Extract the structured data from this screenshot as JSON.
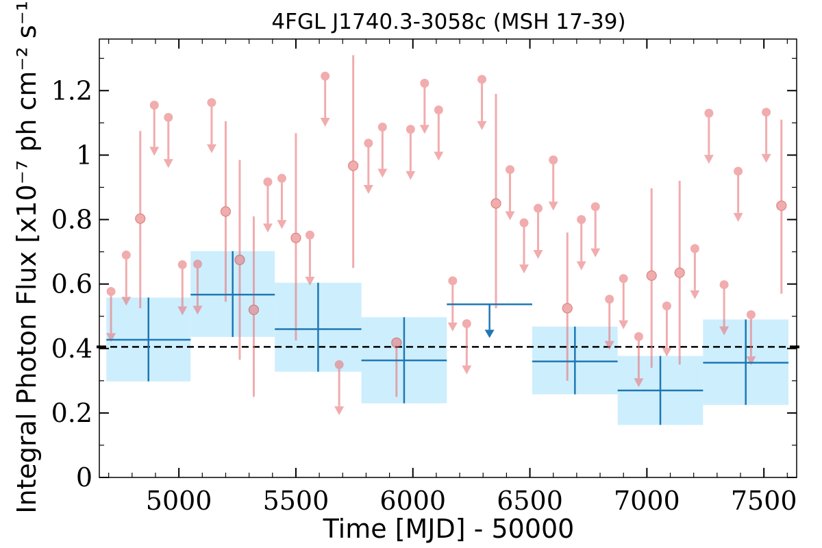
{
  "chart_data": {
    "type": "scatter",
    "title": "4FGL J1740.3-3058c (MSH 17-39)",
    "xlabel": "Time [MJD] - 50000",
    "ylabel": "Integral Photon Flux [x10⁻⁷ ph cm⁻² s⁻¹]",
    "xlim": [
      4660,
      7640
    ],
    "ylim": [
      0,
      1.36
    ],
    "xticks": [
      5000,
      5500,
      6000,
      6500,
      7000,
      7500
    ],
    "yticks": [
      0,
      0.2,
      0.4,
      0.6,
      0.8,
      1,
      1.2
    ],
    "ytick_labels": [
      "0",
      "0.2",
      "0.4",
      "0.6",
      "0.8",
      "1",
      "1.2"
    ],
    "reference_line": {
      "y": 0.405,
      "style": "dashed",
      "color": "#000000"
    },
    "colors": {
      "short_bins": "#e8767a",
      "long_bins": "#1f77b4",
      "long_bins_band": "#cdeefd"
    },
    "series": [
      {
        "kind": "short_bins",
        "upper_limits": [
          {
            "x": 4710,
            "y": 0.577
          },
          {
            "x": 4775,
            "y": 0.69
          },
          {
            "x": 4895,
            "y": 1.155
          },
          {
            "x": 4955,
            "y": 1.117
          },
          {
            "x": 5015,
            "y": 0.66
          },
          {
            "x": 5080,
            "y": 0.662
          },
          {
            "x": 5140,
            "y": 1.163
          },
          {
            "x": 5380,
            "y": 0.917
          },
          {
            "x": 5440,
            "y": 0.928
          },
          {
            "x": 5560,
            "y": 0.752
          },
          {
            "x": 5625,
            "y": 1.245
          },
          {
            "x": 5685,
            "y": 0.35
          },
          {
            "x": 5810,
            "y": 1.037
          },
          {
            "x": 5870,
            "y": 1.087
          },
          {
            "x": 5990,
            "y": 1.08
          },
          {
            "x": 6050,
            "y": 1.223
          },
          {
            "x": 6110,
            "y": 1.14
          },
          {
            "x": 6170,
            "y": 0.61
          },
          {
            "x": 6230,
            "y": 0.477
          },
          {
            "x": 6295,
            "y": 1.235
          },
          {
            "x": 6415,
            "y": 0.955
          },
          {
            "x": 6475,
            "y": 0.79
          },
          {
            "x": 6535,
            "y": 0.835
          },
          {
            "x": 6600,
            "y": 0.985
          },
          {
            "x": 6720,
            "y": 0.8
          },
          {
            "x": 6780,
            "y": 0.84
          },
          {
            "x": 6840,
            "y": 0.553
          },
          {
            "x": 6900,
            "y": 0.617
          },
          {
            "x": 6965,
            "y": 0.437
          },
          {
            "x": 7085,
            "y": 0.532
          },
          {
            "x": 7205,
            "y": 0.71
          },
          {
            "x": 7265,
            "y": 1.13
          },
          {
            "x": 7330,
            "y": 0.598
          },
          {
            "x": 7390,
            "y": 0.95
          },
          {
            "x": 7445,
            "y": 0.505
          },
          {
            "x": 7510,
            "y": 1.133
          }
        ],
        "detections": [
          {
            "x": 4835,
            "y": 0.803,
            "low": 0.525,
            "high": 1.075
          },
          {
            "x": 5200,
            "y": 0.825,
            "low": 0.545,
            "high": 1.105
          },
          {
            "x": 5260,
            "y": 0.675,
            "low": 0.365,
            "high": 0.985
          },
          {
            "x": 5320,
            "y": 0.52,
            "low": 0.25,
            "high": 0.81
          },
          {
            "x": 5500,
            "y": 0.743,
            "low": 0.425,
            "high": 1.068
          },
          {
            "x": 5745,
            "y": 0.967,
            "low": 0.65,
            "high": 1.31
          },
          {
            "x": 5930,
            "y": 0.418,
            "low": 0.25,
            "high": 0.418
          },
          {
            "x": 6355,
            "y": 0.85,
            "low": 0.525,
            "high": 1.19
          },
          {
            "x": 6660,
            "y": 0.525,
            "low": 0.3,
            "high": 0.76
          },
          {
            "x": 7020,
            "y": 0.626,
            "low": 0.34,
            "high": 0.897
          },
          {
            "x": 7140,
            "y": 0.635,
            "low": 0.35,
            "high": 0.92
          },
          {
            "x": 7575,
            "y": 0.843,
            "low": 0.57,
            "high": 1.11
          }
        ]
      },
      {
        "kind": "long_bins",
        "bins": [
          {
            "x0": 4690,
            "x1": 5050,
            "y": 0.427,
            "low": 0.298,
            "high": 0.558
          },
          {
            "x0": 5050,
            "x1": 5410,
            "y": 0.567,
            "low": 0.436,
            "high": 0.702
          },
          {
            "x0": 5410,
            "x1": 5780,
            "y": 0.46,
            "low": 0.328,
            "high": 0.604
          },
          {
            "x0": 5780,
            "x1": 6145,
            "y": 0.363,
            "low": 0.23,
            "high": 0.497
          },
          {
            "x0": 6510,
            "x1": 6875,
            "y": 0.36,
            "low": 0.258,
            "high": 0.468
          },
          {
            "x0": 6875,
            "x1": 7240,
            "y": 0.27,
            "low": 0.163,
            "high": 0.377
          },
          {
            "x0": 7240,
            "x1": 7605,
            "y": 0.356,
            "low": 0.225,
            "high": 0.49
          }
        ],
        "upper_limits": [
          {
            "x0": 6145,
            "x1": 6510,
            "y": 0.537
          }
        ]
      }
    ]
  }
}
